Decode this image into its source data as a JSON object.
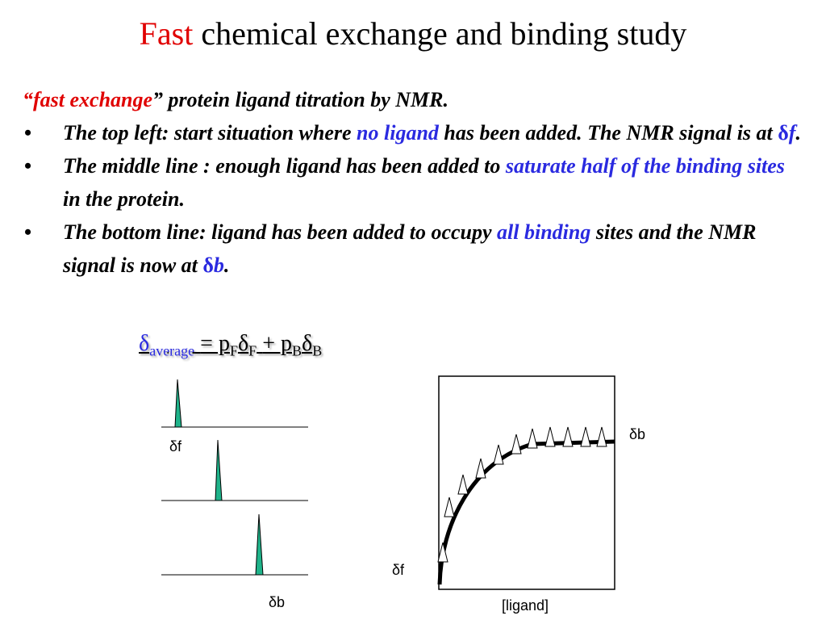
{
  "title": [
    "Fast",
    "chemical exchange and binding study"
  ],
  "intro": [
    "“fast exchange",
    "” protein ligand titration by NMR."
  ],
  "bullets": [
    [
      "The top left: start situation where",
      "no ligand",
      "has been added. The NMR signal is at",
      "δ",
      "f",
      "."
    ],
    [
      "The middle line : enough ligand has been added to",
      "saturate half of the binding sites",
      "in the protein."
    ],
    [
      "The bottom line: ligand has been added to occupy",
      "all binding",
      "sites and the NMR signal is now at",
      "δ",
      "b",
      "."
    ]
  ],
  "formula": [
    "δ",
    "average",
    "= p",
    "F",
    "δ",
    "F",
    "+ p",
    "B",
    "δ",
    "B"
  ],
  "spectra": {
    "label_free": "δf",
    "label_bound": "δb"
  },
  "graph": {
    "label_bound": "δb",
    "label_free": "δf",
    "x_label": "[ligand]"
  }
}
